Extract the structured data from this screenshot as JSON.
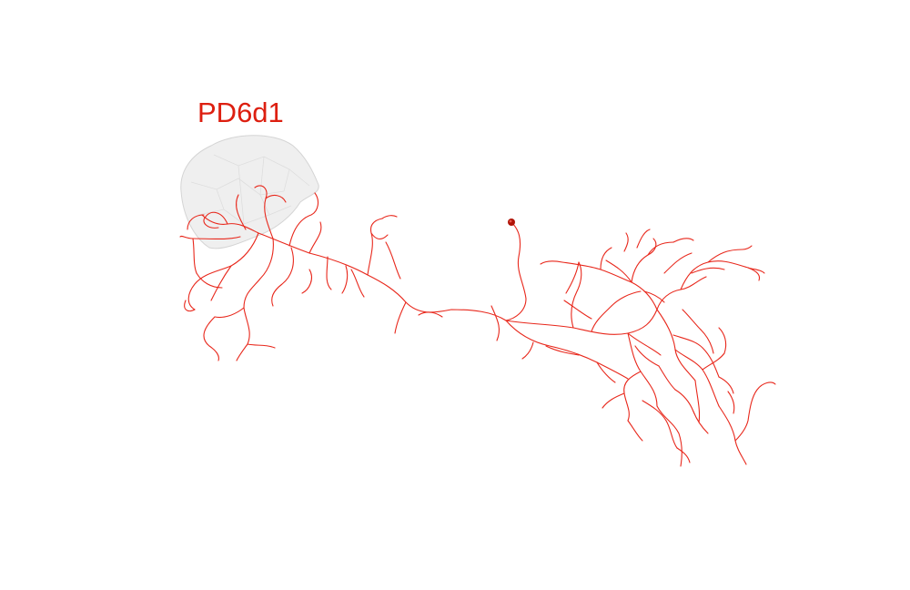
{
  "figure": {
    "neuron_name": "PD6d1",
    "colors": {
      "neuron": "#e8271b",
      "label": "#dd1f10",
      "soma": "#b01408",
      "neuropil_fill": "#ececec",
      "neuropil_stroke": "#d4d4d4"
    },
    "neuropil_mesh": "translucent-gray-brain-region"
  }
}
